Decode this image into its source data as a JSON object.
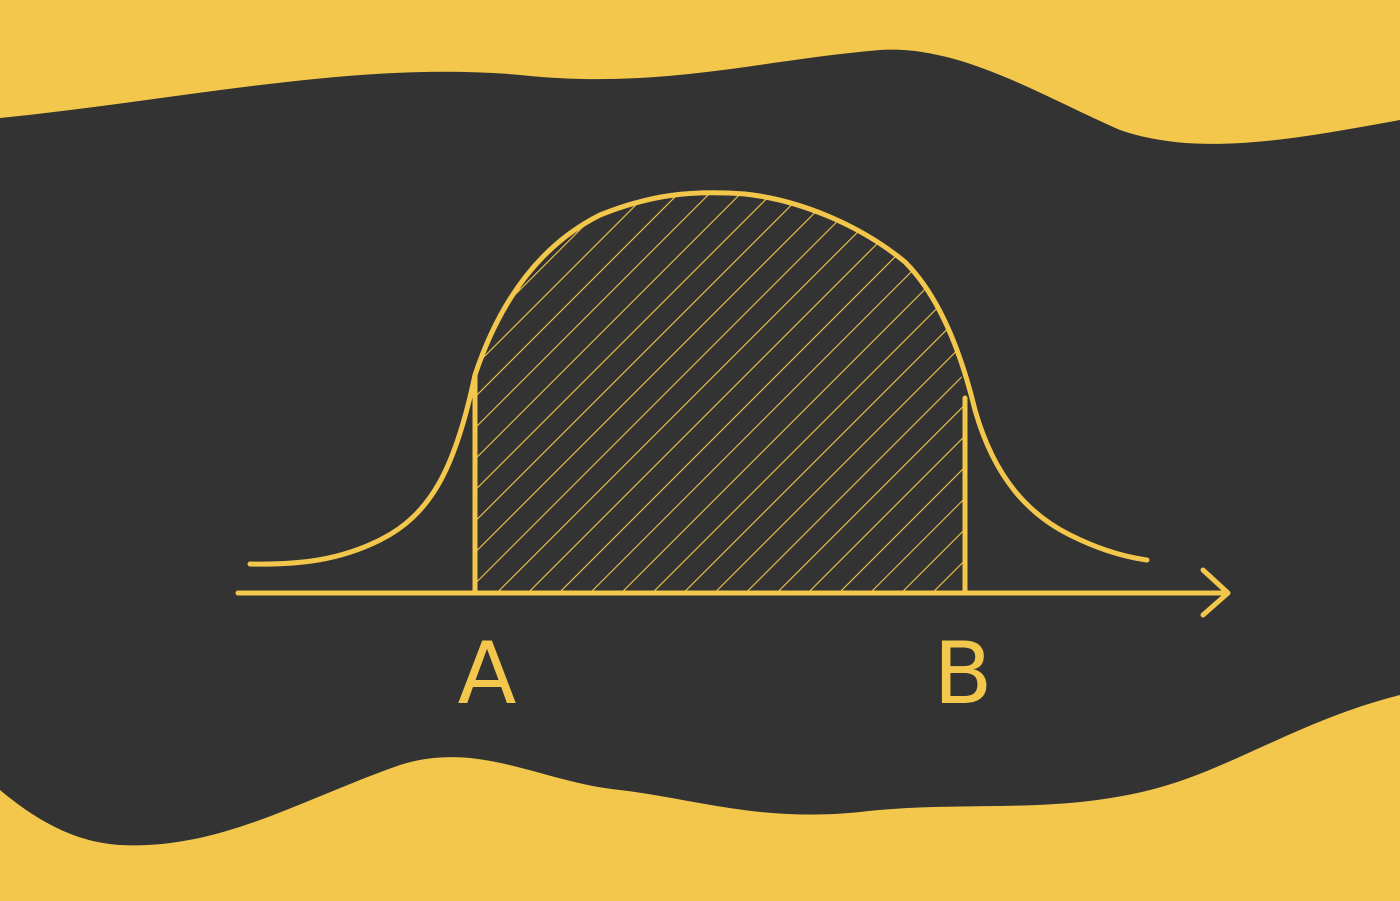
{
  "diagram": {
    "labels": {
      "a": "A",
      "b": "B"
    },
    "colors": {
      "background": "#f2c74b",
      "band": "#333333",
      "ink": "#f2c74b"
    },
    "icons": {
      "axis_arrowhead": "arrowhead-icon"
    },
    "shaded_region": {
      "from": "A",
      "to": "B",
      "fill": "diagonal-hatch"
    }
  }
}
